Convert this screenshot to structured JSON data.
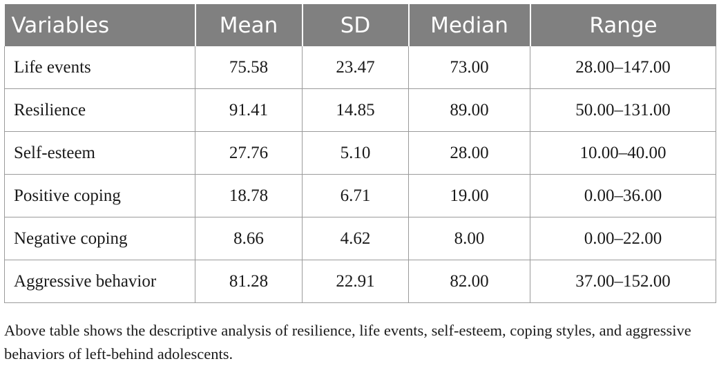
{
  "table": {
    "headers": [
      "Variables",
      "Mean",
      "SD",
      "Median",
      "Range"
    ],
    "rows": [
      [
        "Life events",
        "75.58",
        "23.47",
        "73.00",
        "28.00–147.00"
      ],
      [
        "Resilience",
        "91.41",
        "14.85",
        "89.00",
        "50.00–131.00"
      ],
      [
        "Self-esteem",
        "27.76",
        "5.10",
        "28.00",
        "10.00–40.00"
      ],
      [
        "Positive coping",
        "18.78",
        "6.71",
        "19.00",
        "0.00–36.00"
      ],
      [
        "Negative coping",
        "8.66",
        "4.62",
        "8.00",
        "0.00–22.00"
      ],
      [
        "Aggressive behavior",
        "81.28",
        "22.91",
        "82.00",
        "37.00–152.00"
      ]
    ]
  },
  "caption": "Above table shows the descriptive analysis of resilience, life events, self-esteem, coping styles, and aggressive behaviors of left-behind adolescents.",
  "colors": {
    "header_bg": "#808080",
    "header_text": "#ffffff",
    "grid": "#9a9a9a",
    "text": "#1a1a1a"
  }
}
